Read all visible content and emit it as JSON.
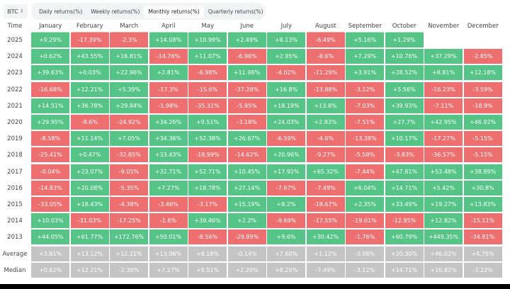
{
  "asset_selector": {
    "value": "BTC",
    "icon": "sort-updown-icon"
  },
  "tabs": [
    {
      "label": "Daily returns(%)",
      "active": false
    },
    {
      "label": "Weekly returns(%)",
      "active": false
    },
    {
      "label": "Monthly returns(%)",
      "active": true
    },
    {
      "label": "Quarterly returns(%)",
      "active": false
    }
  ],
  "colors": {
    "positive": "#55c486",
    "negative": "#ee6f6f",
    "summary": "#c4c4c4"
  },
  "chart_data": {
    "type": "heatmap",
    "title": "BTC Monthly returns(%)",
    "row_header": "Time",
    "columns": [
      "January",
      "February",
      "March",
      "April",
      "May",
      "June",
      "July",
      "August",
      "September",
      "October",
      "November",
      "December"
    ],
    "rows": [
      {
        "label": "2025",
        "values": [
          "+9.29%",
          "-17.39%",
          "-2.3%",
          "+14.08%",
          "+10.99%",
          "+2.49%",
          "+8.13%",
          "-6.49%",
          "+5.16%",
          "+1.29%",
          null,
          null
        ]
      },
      {
        "label": "2024",
        "values": [
          "+0.62%",
          "+43.55%",
          "+16.81%",
          "-14.76%",
          "+11.07%",
          "-6.96%",
          "+2.95%",
          "-8.6%",
          "+7.29%",
          "+10.76%",
          "+37.29%",
          "-2.85%"
        ]
      },
      {
        "label": "2023",
        "values": [
          "+39.63%",
          "+0.03%",
          "+22.96%",
          "+2.81%",
          "-6.98%",
          "+11.98%",
          "-4.02%",
          "-11.29%",
          "+3.91%",
          "+28.52%",
          "+8.81%",
          "+12.18%"
        ]
      },
      {
        "label": "2022",
        "values": [
          "-16.68%",
          "+12.21%",
          "+5.39%",
          "-17.3%",
          "-15.6%",
          "-37.28%",
          "+16.8%",
          "-13.88%",
          "-3.12%",
          "+5.56%",
          "-16.23%",
          "-3.59%"
        ]
      },
      {
        "label": "2021",
        "values": [
          "+14.51%",
          "+36.78%",
          "+29.84%",
          "-1.98%",
          "-35.31%",
          "-5.95%",
          "+18.19%",
          "+13.8%",
          "-7.03%",
          "+39.93%",
          "-7.11%",
          "-18.9%"
        ]
      },
      {
        "label": "2020",
        "values": [
          "+29.95%",
          "-8.6%",
          "-24.92%",
          "+34.26%",
          "+9.51%",
          "-3.18%",
          "+24.03%",
          "+2.83%",
          "-7.51%",
          "+27.7%",
          "+42.95%",
          "+46.92%"
        ]
      },
      {
        "label": "2019",
        "values": [
          "-8.58%",
          "+11.14%",
          "+7.05%",
          "+34.36%",
          "+52.38%",
          "+26.67%",
          "-6.59%",
          "-4.6%",
          "-13.38%",
          "+10.17%",
          "-17.27%",
          "-5.15%"
        ]
      },
      {
        "label": "2018",
        "values": [
          "-25.41%",
          "+0.47%",
          "-32.85%",
          "+33.43%",
          "-18.99%",
          "-14.62%",
          "+20.96%",
          "-9.27%",
          "-5.58%",
          "-3.83%",
          "-36.57%",
          "-5.15%"
        ]
      },
      {
        "label": "2017",
        "values": [
          "-0.04%",
          "+23.07%",
          "-9.05%",
          "+32.71%",
          "+52.71%",
          "+10.45%",
          "+17.92%",
          "+65.32%",
          "-7.44%",
          "+47.81%",
          "+53.48%",
          "+38.89%"
        ]
      },
      {
        "label": "2016",
        "values": [
          "-14.83%",
          "+20.08%",
          "-5.35%",
          "+7.27%",
          "+18.78%",
          "+27.14%",
          "-7.67%",
          "-7.49%",
          "+6.04%",
          "+14.71%",
          "+5.42%",
          "+30.8%"
        ]
      },
      {
        "label": "2015",
        "values": [
          "-33.05%",
          "+18.43%",
          "-4.38%",
          "-3.46%",
          "-3.17%",
          "+15.19%",
          "+8.2%",
          "-18.67%",
          "+2.35%",
          "+33.49%",
          "+19.27%",
          "+13.83%"
        ]
      },
      {
        "label": "2014",
        "values": [
          "+10.03%",
          "-31.03%",
          "-17.25%",
          "-1.6%",
          "+39.46%",
          "+2.2%",
          "-9.69%",
          "-17.55%",
          "-19.01%",
          "-12.95%",
          "+12.82%",
          "-15.11%"
        ]
      },
      {
        "label": "2013",
        "values": [
          "+44.05%",
          "+61.77%",
          "+172.76%",
          "+50.01%",
          "-8.56%",
          "-29.89%",
          "+9.6%",
          "+30.42%",
          "-1.76%",
          "+60.79%",
          "+449.35%",
          "-34.81%"
        ]
      }
    ],
    "summary_rows": [
      {
        "label": "Average",
        "values": [
          "+3.81%",
          "+13.12%",
          "+12.21%",
          "+13.06%",
          "+8.18%",
          "-0.14%",
          "+7.60%",
          "+1.12%",
          "-3.08%",
          "+20.30%",
          "+46.02%",
          "+4.75%"
        ]
      },
      {
        "label": "Median",
        "values": [
          "+0.62%",
          "+12.21%",
          "-2.30%",
          "+7.27%",
          "+9.51%",
          "+2.20%",
          "+8.20%",
          "-7.49%",
          "-3.12%",
          "+14.71%",
          "+10.82%",
          "-3.22%"
        ]
      }
    ]
  }
}
